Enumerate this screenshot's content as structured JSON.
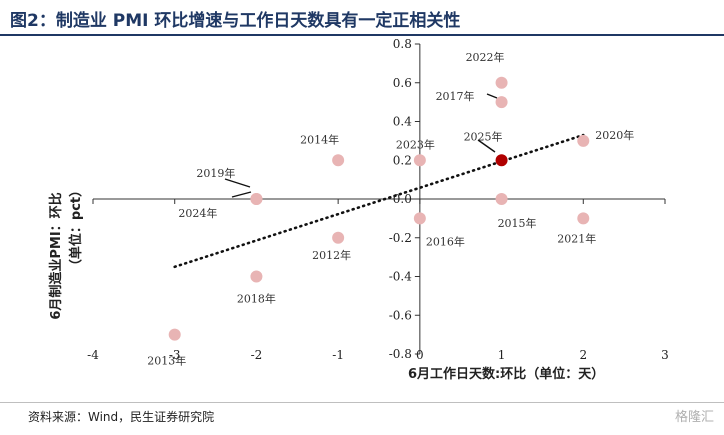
{
  "header": {
    "title": "图2：制造业 PMI 环比增速与工作日天数具有一定正相关性"
  },
  "footer": {
    "source": "资料来源：Wind，民生证券研究院",
    "watermark": "格隆汇"
  },
  "chart_data": {
    "type": "scatter",
    "title": "图2：制造业 PMI 环比增速与工作日天数具有一定正相关性",
    "xlabel": "6月工作日天数:环比（单位：天）",
    "ylabel_line1": "6月制造业PMI：环比",
    "ylabel_line2": "（单位：pct）",
    "xlim": [
      -4,
      3
    ],
    "ylim": [
      -0.8,
      0.8
    ],
    "xticks": [
      "-4",
      "-3",
      "-2",
      "-1",
      "0",
      "1",
      "2",
      "3"
    ],
    "yticks": [
      "0.8",
      "0.6",
      "0.4",
      "0.2",
      "0.0",
      "-0.2",
      "-0.4",
      "-0.6",
      "-0.8"
    ],
    "points": [
      {
        "label": "2013年",
        "x": -3,
        "y": -0.7
      },
      {
        "label": "2018年",
        "x": -2,
        "y": -0.4
      },
      {
        "label": "2019年",
        "x": -2,
        "y": 0.0
      },
      {
        "label": "2024年",
        "x": -2,
        "y": 0.0
      },
      {
        "label": "2012年",
        "x": -1,
        "y": -0.2
      },
      {
        "label": "2014年",
        "x": -1,
        "y": 0.2
      },
      {
        "label": "2016年",
        "x": 0,
        "y": -0.1
      },
      {
        "label": "2023年",
        "x": 0,
        "y": 0.2
      },
      {
        "label": "2015年",
        "x": 1,
        "y": 0.0
      },
      {
        "label": "2017年",
        "x": 1,
        "y": 0.5
      },
      {
        "label": "2022年",
        "x": 1,
        "y": 0.6
      },
      {
        "label": "2021年",
        "x": 2,
        "y": -0.1
      },
      {
        "label": "2020年",
        "x": 2,
        "y": 0.3
      },
      {
        "label": "2025年",
        "x": 1,
        "y": 0.2,
        "highlight": true
      }
    ],
    "trendline": {
      "style": "dotted",
      "x": [
        -3,
        2
      ],
      "y": [
        -0.35,
        0.33
      ]
    },
    "grid": false,
    "colors": {
      "point": "#e8b4b4",
      "highlight": "#b00000",
      "trend": "#111111",
      "axis": "#333333",
      "title": "#1f3864"
    }
  }
}
